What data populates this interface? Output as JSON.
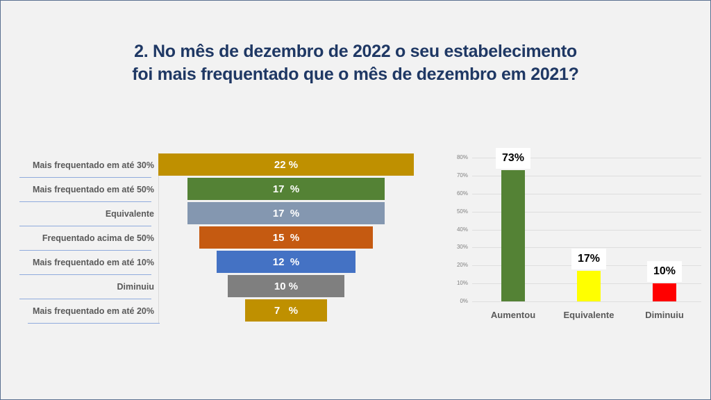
{
  "title": {
    "line1": "2. No mês de dezembro de 2022 o seu estabelecimento",
    "line2": "foi mais frequentado que o mês de dezembro em 2021?"
  },
  "chart_data": [
    {
      "type": "bar",
      "subtype": "funnel",
      "orientation": "horizontal",
      "categories": [
        "Mais frequentado em até 30%",
        "Mais frequentado em até 50%",
        "Equivalente",
        "Frequentado acima de 50%",
        "Mais frequentado em até 10%",
        "Diminuiu",
        "Mais frequentado em até 20%"
      ],
      "values": [
        22,
        17,
        17,
        15,
        12,
        10,
        7
      ],
      "data_labels": [
        "22 %",
        "17  %",
        "17  %",
        "15  %",
        "12  %",
        "10 %",
        "7   %"
      ],
      "colors": [
        "#bf9000",
        "#548235",
        "#8497b0",
        "#c55a11",
        "#4472c4",
        "#7f7f7f",
        "#bf9000"
      ],
      "label_color": "#ffffff",
      "title": "",
      "xlabel": "",
      "ylabel": ""
    },
    {
      "type": "bar",
      "categories": [
        "Aumentou",
        "Equivalente",
        "Diminuiu"
      ],
      "values": [
        73,
        17,
        10
      ],
      "data_labels": [
        "73%",
        "17%",
        "10%"
      ],
      "colors": [
        "#548235",
        "#ffff00",
        "#ff0000"
      ],
      "ylim": [
        0,
        80
      ],
      "yticks": [
        "0%",
        "10%",
        "20%",
        "30%",
        "40%",
        "50%",
        "60%",
        "70%",
        "80%"
      ],
      "grid": true,
      "title": "",
      "xlabel": "",
      "ylabel": ""
    }
  ]
}
